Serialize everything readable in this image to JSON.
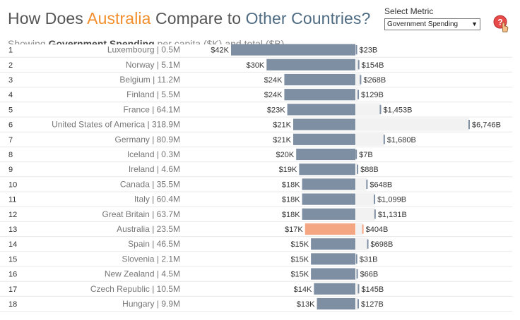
{
  "header": {
    "title_prefix": "How Does ",
    "title_highlight": "Australia",
    "title_middle": " Compare to ",
    "title_end": "Other Countries?",
    "subtitle_prefix": "Showing ",
    "subtitle_bold": "Government Spending",
    "subtitle_rest": " per capita ($K) and total ($B)"
  },
  "controls": {
    "select_metric_label": "Select Metric",
    "selected_metric": "Government Spending"
  },
  "colors": {
    "bar": "#7f8fa3",
    "highlight": "#f4a582",
    "accent": "#f28e2b",
    "title_dark": "#4e6b82",
    "total_bg": "#f2f2f2",
    "total_tick": "#7f8fa3",
    "total_tick_highlight": "#f4a582"
  },
  "chart_data": {
    "type": "bar",
    "highlight_country": "Australia",
    "per_capita_unit": "$K",
    "total_unit": "$B",
    "per_capita_max": 42,
    "total_max": 6746,
    "rows": [
      {
        "rank": "1",
        "country": "Luxembourg | 0.5M",
        "per_capita": 42,
        "per_capita_label": "$42K",
        "total": 23,
        "total_label": "$23B"
      },
      {
        "rank": "2",
        "country": "Norway | 5.1M",
        "per_capita": 30,
        "per_capita_label": "$30K",
        "total": 154,
        "total_label": "$154B"
      },
      {
        "rank": "3",
        "country": "Belgium | 11.2M",
        "per_capita": 24,
        "per_capita_label": "$24K",
        "total": 268,
        "total_label": "$268B"
      },
      {
        "rank": "4",
        "country": "Finland | 5.5M",
        "per_capita": 24,
        "per_capita_label": "$24K",
        "total": 129,
        "total_label": "$129B"
      },
      {
        "rank": "5",
        "country": "France | 64.1M",
        "per_capita": 23,
        "per_capita_label": "$23K",
        "total": 1453,
        "total_label": "$1,453B"
      },
      {
        "rank": "6",
        "country": "United States of America | 318.9M",
        "per_capita": 21,
        "per_capita_label": "$21K",
        "total": 6746,
        "total_label": "$6,746B"
      },
      {
        "rank": "7",
        "country": "Germany | 80.9M",
        "per_capita": 21,
        "per_capita_label": "$21K",
        "total": 1680,
        "total_label": "$1,680B"
      },
      {
        "rank": "8",
        "country": "Iceland | 0.3M",
        "per_capita": 20,
        "per_capita_label": "$20K",
        "total": 7,
        "total_label": "$7B"
      },
      {
        "rank": "9",
        "country": "Ireland | 4.6M",
        "per_capita": 19,
        "per_capita_label": "$19K",
        "total": 88,
        "total_label": "$88B"
      },
      {
        "rank": "10",
        "country": "Canada | 35.5M",
        "per_capita": 18,
        "per_capita_label": "$18K",
        "total": 648,
        "total_label": "$648B"
      },
      {
        "rank": "11",
        "country": "Italy | 60.4M",
        "per_capita": 18,
        "per_capita_label": "$18K",
        "total": 1099,
        "total_label": "$1,099B"
      },
      {
        "rank": "12",
        "country": "Great Britain | 63.7M",
        "per_capita": 18,
        "per_capita_label": "$18K",
        "total": 1131,
        "total_label": "$1,131B"
      },
      {
        "rank": "13",
        "country": "Australia | 23.5M",
        "per_capita": 17,
        "per_capita_label": "$17K",
        "total": 404,
        "total_label": "$404B"
      },
      {
        "rank": "14",
        "country": "Spain | 46.5M",
        "per_capita": 15,
        "per_capita_label": "$15K",
        "total": 698,
        "total_label": "$698B"
      },
      {
        "rank": "15",
        "country": "Slovenia | 2.1M",
        "per_capita": 15,
        "per_capita_label": "$15K",
        "total": 31,
        "total_label": "$31B"
      },
      {
        "rank": "16",
        "country": "New Zealand | 4.5M",
        "per_capita": 15,
        "per_capita_label": "$15K",
        "total": 66,
        "total_label": "$66B"
      },
      {
        "rank": "17",
        "country": "Czech Republic | 10.5M",
        "per_capita": 14,
        "per_capita_label": "$14K",
        "total": 145,
        "total_label": "$145B"
      },
      {
        "rank": "18",
        "country": "Hungary | 9.9M",
        "per_capita": 13,
        "per_capita_label": "$13K",
        "total": 127,
        "total_label": "$127B"
      }
    ]
  }
}
